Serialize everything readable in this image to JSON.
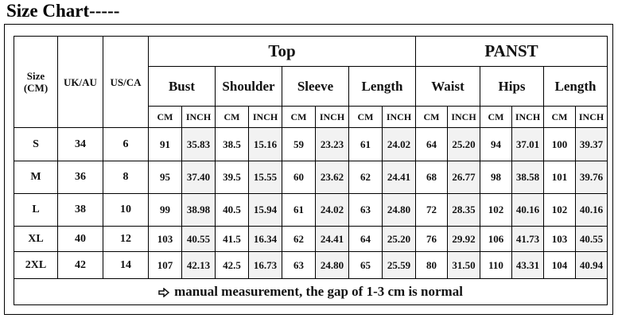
{
  "title": "Size Chart-----",
  "table": {
    "row_headers": [
      "Size (CM)",
      "UK/AU",
      "US/CA"
    ],
    "groups": [
      "Top",
      "PANST"
    ],
    "measures": [
      "Bust",
      "Shoulder",
      "Sleeve",
      "Length",
      "Waist",
      "Hips",
      "Length"
    ],
    "units": [
      "CM",
      "INCH",
      "CM",
      "INCH",
      "CM",
      "INCH",
      "CM",
      "INCH",
      "CM",
      "INCH",
      "CM",
      "INCH",
      "CM",
      "INCH"
    ],
    "rows": [
      [
        "S",
        "34",
        "6",
        "91",
        "35.83",
        "38.5",
        "15.16",
        "59",
        "23.23",
        "61",
        "24.02",
        "64",
        "25.20",
        "94",
        "37.01",
        "100",
        "39.37"
      ],
      [
        "M",
        "36",
        "8",
        "95",
        "37.40",
        "39.5",
        "15.55",
        "60",
        "23.62",
        "62",
        "24.41",
        "68",
        "26.77",
        "98",
        "38.58",
        "101",
        "39.76"
      ],
      [
        "L",
        "38",
        "10",
        "99",
        "38.98",
        "40.5",
        "15.94",
        "61",
        "24.02",
        "63",
        "24.80",
        "72",
        "28.35",
        "102",
        "40.16",
        "102",
        "40.16"
      ],
      [
        "XL",
        "40",
        "12",
        "103",
        "40.55",
        "41.5",
        "16.34",
        "62",
        "24.41",
        "64",
        "25.20",
        "76",
        "29.92",
        "106",
        "41.73",
        "103",
        "40.55"
      ],
      [
        "2XL",
        "42",
        "14",
        "107",
        "42.13",
        "42.5",
        "16.73",
        "63",
        "24.80",
        "65",
        "25.59",
        "80",
        "31.50",
        "110",
        "43.31",
        "104",
        "40.94"
      ]
    ],
    "note": "manual measurement, the gap of 1-3 cm is normal"
  }
}
